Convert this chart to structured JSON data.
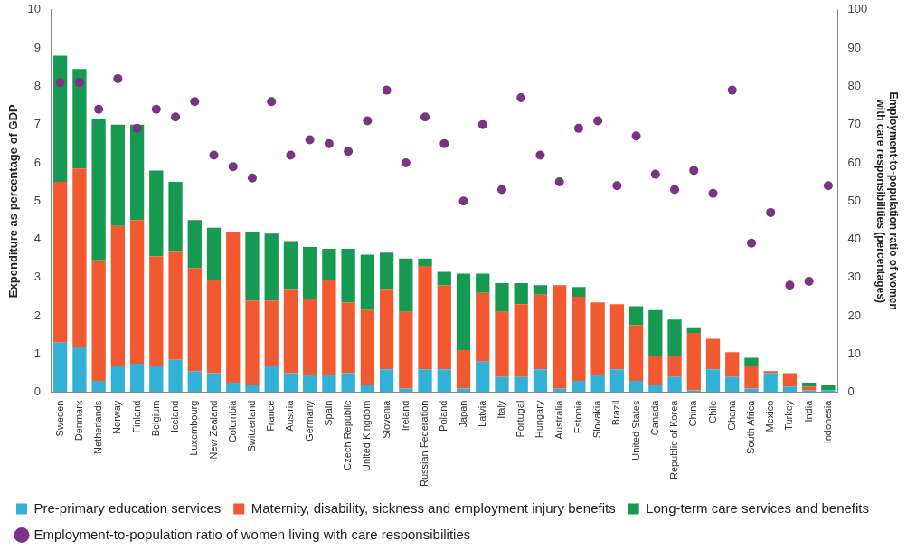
{
  "chart_data": {
    "type": "bar",
    "stacked": true,
    "ylabel": "Expenditure as percentage of GDP",
    "y2label": "Employment-to-population ratio of women with care responsibilities (percentages)",
    "categories": [
      "Sweden",
      "Denmark",
      "Netherlands",
      "Norway",
      "Finland",
      "Belgium",
      "Iceland",
      "Luxembourg",
      "New Zealand",
      "Colombia",
      "Switzerland",
      "France",
      "Austria",
      "Germany",
      "Spain",
      "Czech Republic",
      "United Kingdom",
      "Slovenia",
      "Ireland",
      "Russian Federation",
      "Poland",
      "Japan",
      "Latvia",
      "Italy",
      "Portugal",
      "Hungary",
      "Australia",
      "Estonia",
      "Slovakia",
      "Brazil",
      "United States",
      "Canada",
      "Republic of Korea",
      "China",
      "Chile",
      "Ghana",
      "South Africa",
      "Mexico",
      "Turkey",
      "India",
      "Indonesia"
    ],
    "series": [
      {
        "name": "Pre-primary education services",
        "color": "#33b0d6",
        "values": [
          1.3,
          1.2,
          0.3,
          0.7,
          0.75,
          0.7,
          0.85,
          0.55,
          0.5,
          0.25,
          0.2,
          0.7,
          0.5,
          0.45,
          0.45,
          0.5,
          0.2,
          0.6,
          0.1,
          0.6,
          0.6,
          0.1,
          0.8,
          0.4,
          0.4,
          0.6,
          0.1,
          0.3,
          0.45,
          0.6,
          0.3,
          0.2,
          0.4,
          0.05,
          0.6,
          0.4,
          0.1,
          0.5,
          0.15,
          0.05,
          0.05
        ]
      },
      {
        "name": "Maternity, disability, sickness and employment injury benefits",
        "color": "#f15a31",
        "values": [
          4.2,
          4.65,
          3.15,
          3.65,
          3.75,
          2.85,
          2.85,
          2.7,
          2.45,
          3.95,
          2.2,
          1.7,
          2.2,
          2.0,
          2.5,
          1.85,
          1.95,
          2.1,
          2.0,
          2.7,
          2.2,
          1.0,
          1.8,
          1.7,
          1.9,
          1.95,
          2.7,
          2.2,
          1.9,
          1.7,
          1.45,
          0.75,
          0.55,
          1.5,
          0.8,
          0.65,
          0.6,
          0.05,
          0.35,
          0.1,
          0
        ]
      },
      {
        "name": "Long-term care services and benefits",
        "color": "#169950",
        "values": [
          3.3,
          2.6,
          3.7,
          2.65,
          2.5,
          2.25,
          1.8,
          1.25,
          1.35,
          0,
          1.8,
          1.75,
          1.25,
          1.35,
          0.8,
          1.4,
          1.45,
          0.95,
          1.4,
          0.2,
          0.35,
          2.0,
          0.5,
          0.75,
          0.55,
          0.25,
          0,
          0.25,
          0,
          0,
          0.5,
          1.2,
          0.95,
          0.15,
          0,
          0,
          0.2,
          0,
          0,
          0.1,
          0.15
        ]
      },
      {
        "name": "Employment-to-population ratio of women living with care responsibilities",
        "type": "scatter",
        "axis": "y2",
        "color": "#7b3385",
        "values": [
          81,
          81,
          74,
          82,
          69,
          74,
          72,
          76,
          62,
          59,
          56,
          76,
          62,
          66,
          65,
          63,
          71,
          79,
          60,
          72,
          65,
          50,
          70,
          53,
          77,
          62,
          55,
          69,
          71,
          54,
          67,
          57,
          53,
          58,
          52,
          79,
          39,
          47,
          28,
          29,
          54
        ]
      }
    ],
    "ylim": [
      0,
      10
    ],
    "yticks": [
      0,
      1,
      2,
      3,
      4,
      5,
      6,
      7,
      8,
      9,
      10
    ],
    "y2lim": [
      0,
      100
    ],
    "y2ticks": [
      0,
      10,
      20,
      30,
      40,
      50,
      60,
      70,
      80,
      90,
      100
    ],
    "grid": false,
    "legend": "bottom",
    "marker": "circle"
  }
}
